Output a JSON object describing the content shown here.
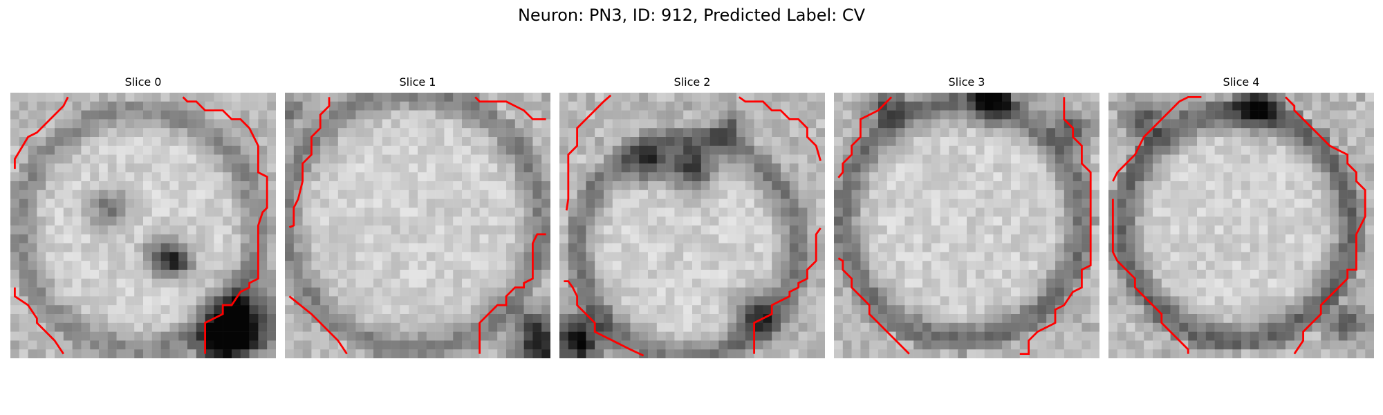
{
  "figure": {
    "title": "Neuron: PN3, ID: 912, Predicted Label: CV"
  },
  "slices": [
    {
      "title": "Slice 0"
    },
    {
      "title": "Slice 1"
    },
    {
      "title": "Slice 2"
    },
    {
      "title": "Slice 3"
    },
    {
      "title": "Slice 4"
    }
  ],
  "colors": {
    "contour": "#ff0000",
    "background": "#ffffff"
  }
}
